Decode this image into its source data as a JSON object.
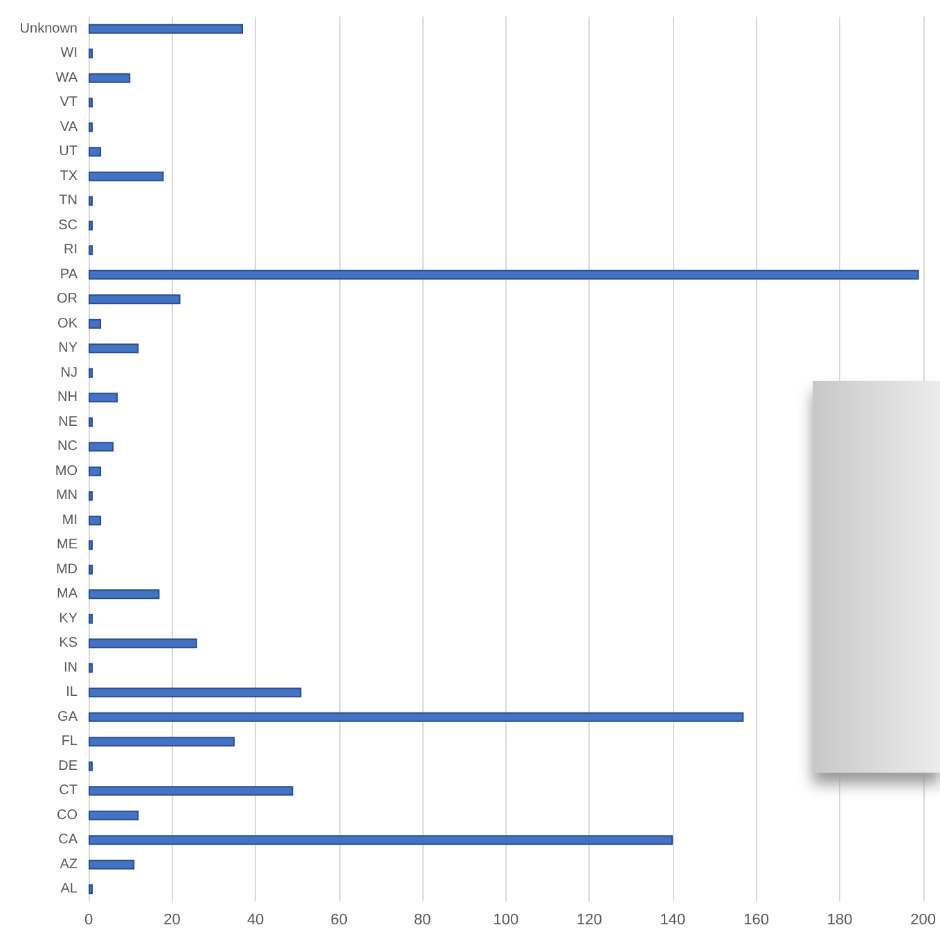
{
  "chart_data": {
    "type": "bar",
    "orientation": "horizontal",
    "categories": [
      "Unknown",
      "WI",
      "WA",
      "VT",
      "VA",
      "UT",
      "TX",
      "TN",
      "SC",
      "RI",
      "PA",
      "OR",
      "OK",
      "NY",
      "NJ",
      "NH",
      "NE",
      "NC",
      "MO",
      "MN",
      "MI",
      "ME",
      "MD",
      "MA",
      "KY",
      "KS",
      "IN",
      "IL",
      "GA",
      "FL",
      "DE",
      "CT",
      "CO",
      "CA",
      "AZ",
      "AL"
    ],
    "values": [
      37,
      1,
      10,
      1,
      1,
      3,
      18,
      1,
      1,
      1,
      199,
      22,
      3,
      12,
      1,
      7,
      1,
      6,
      3,
      1,
      3,
      1,
      1,
      17,
      1,
      26,
      1,
      51,
      157,
      35,
      1,
      49,
      12,
      140,
      11,
      1
    ],
    "color": "#4472c4",
    "xlim": [
      0,
      200
    ],
    "xticks": [
      0,
      20,
      40,
      60,
      80,
      100,
      120,
      140,
      160,
      180,
      200
    ],
    "grid": "x"
  }
}
